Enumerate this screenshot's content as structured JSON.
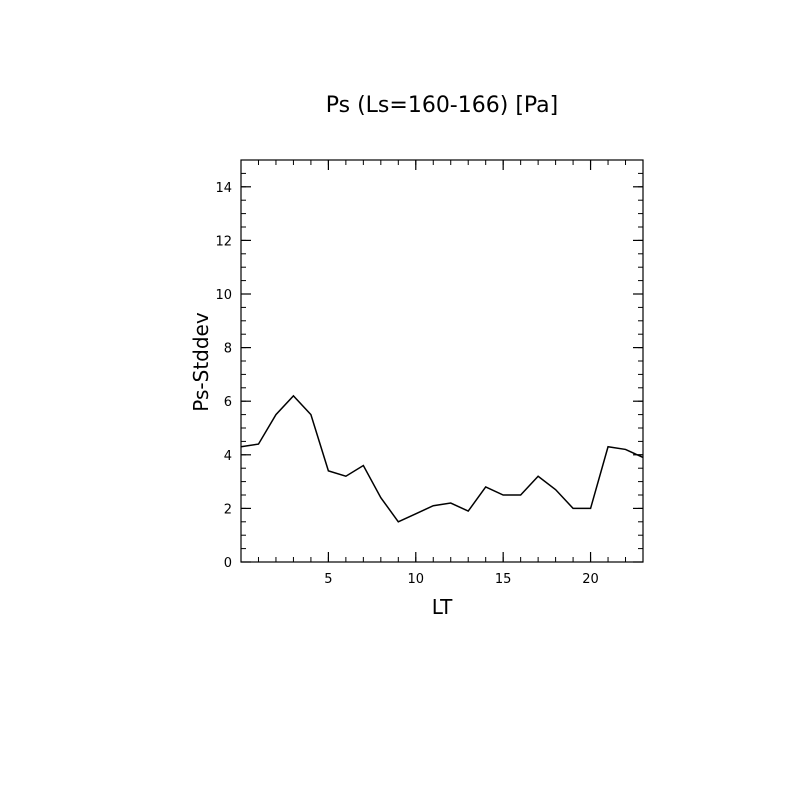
{
  "chart_data": {
    "type": "line",
    "title": "Ps (Ls=160-166) [Pa]",
    "xlabel": "LT",
    "ylabel": "Ps-Stddev",
    "xlim": [
      0,
      23
    ],
    "ylim": [
      0,
      15
    ],
    "x_ticks": [
      5,
      10,
      15,
      20
    ],
    "y_ticks": [
      0,
      2,
      4,
      6,
      8,
      10,
      12,
      14
    ],
    "x_tick_labels": [
      "5",
      "10",
      "15",
      "20"
    ],
    "y_tick_labels": [
      "0",
      "2",
      "4",
      "6",
      "8",
      "10",
      "12",
      "14"
    ],
    "grid": false,
    "series": [
      {
        "x": [
          0,
          1,
          2,
          3,
          4,
          5,
          6,
          7,
          8,
          9,
          10,
          11,
          12,
          13,
          14,
          15,
          16,
          17,
          18,
          19,
          20,
          21,
          22,
          23
        ],
        "values": [
          4.3,
          4.4,
          5.5,
          6.2,
          5.5,
          3.4,
          3.2,
          3.6,
          2.4,
          1.5,
          1.8,
          2.1,
          2.2,
          1.9,
          2.8,
          2.5,
          2.5,
          3.2,
          2.7,
          2.0,
          2.0,
          4.3,
          4.2,
          3.9
        ],
        "color": "#000000"
      }
    ]
  }
}
